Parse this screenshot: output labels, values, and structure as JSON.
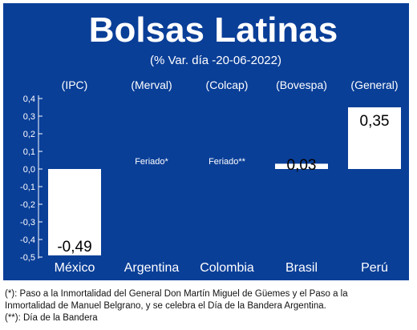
{
  "chart_data": {
    "type": "bar",
    "title": "Bolsas Latinas",
    "subtitle": "(% Var. día -20-06-2022)",
    "categories": [
      "México",
      "Argentina",
      "Colombia",
      "Brasil",
      "Perú"
    ],
    "indices": [
      "(IPC)",
      "(Merval)",
      "(Colcap)",
      "(Bovespa)",
      "(General)"
    ],
    "values": [
      -0.49,
      null,
      null,
      0.03,
      0.35
    ],
    "value_labels": [
      "-0,49",
      "",
      "",
      "0,03",
      "0,35"
    ],
    "annotations": [
      "",
      "Feriado*",
      "Feriado**",
      "",
      ""
    ],
    "ylim": [
      -0.5,
      0.4
    ],
    "yticks": [
      0.4,
      0.3,
      0.2,
      0.1,
      0.0,
      -0.1,
      -0.2,
      -0.3,
      -0.4,
      -0.5
    ],
    "ytick_labels": [
      "0,4",
      "0,3",
      "0,2",
      "0,1",
      "0,0",
      "-0,1",
      "-0,2",
      "-0,3",
      "-0,4",
      "-0,5"
    ],
    "xlabel": "",
    "ylabel": "",
    "grid": false,
    "colors": {
      "background": "#0a3f98",
      "bar": "#ffffff",
      "text": "#ffffff"
    }
  },
  "footnotes": [
    "(*): Paso a la Inmortalidad del General Don Martín Miguel de Güemes y el Paso a la",
    "Inmortalidad de Manuel Belgrano, y se celebra el Día de la Bandera Argentina.",
    "(**): Día de la Bandera"
  ]
}
